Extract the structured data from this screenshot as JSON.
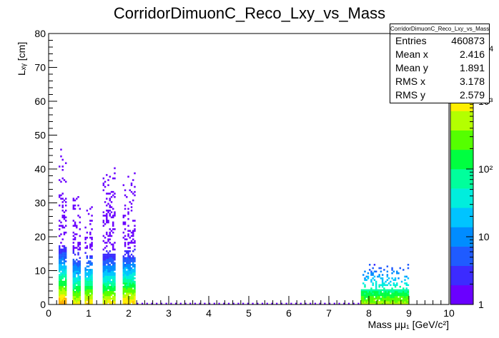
{
  "chart_data": {
    "type": "heatmap",
    "title": "CorridorDimuonC_Reco_Lxy_vs_Mass",
    "xlabel": "Mass μμ₁ [GeV/c²]",
    "ylabel": "Lₓᵧ [cm]",
    "xlim": [
      0,
      10
    ],
    "ylim": [
      0,
      80
    ],
    "x_ticks": [
      "0",
      "1",
      "2",
      "3",
      "4",
      "5",
      "6",
      "7",
      "8",
      "9",
      "10"
    ],
    "y_ticks": [
      "0",
      "10",
      "20",
      "30",
      "40",
      "50",
      "60",
      "70",
      "80"
    ],
    "z_scale": "log",
    "zlim": [
      1,
      10000
    ],
    "z_ticks": [
      "1",
      "10",
      "10²",
      "10³"
    ],
    "z_exponent_label": "4",
    "palette": [
      "#6a00ff",
      "#3c2bff",
      "#1f5bff",
      "#008cff",
      "#00c4ff",
      "#00eedd",
      "#00ff9c",
      "#00ff40",
      "#55ff00",
      "#b4ff00",
      "#ffee00",
      "#ffb000",
      "#ff6000",
      "#ff1a00"
    ],
    "stats_box": {
      "name": "CorridorDimuonC_Reco_Lxy_vs_Mass",
      "rows": [
        {
          "label": "Entries",
          "value": "460873"
        },
        {
          "label": "Mean x",
          "value": "2.416"
        },
        {
          "label": "Mean y",
          "value": "1.891"
        },
        {
          "label": "RMS x",
          "value": "3.178"
        },
        {
          "label": "RMS y",
          "value": "2.579"
        }
      ]
    },
    "clusters": [
      {
        "xmin": 0.25,
        "xmax": 0.45,
        "ymax": 47,
        "peak": 3000
      },
      {
        "xmin": 0.6,
        "xmax": 0.8,
        "ymax": 36,
        "peak": 1200
      },
      {
        "xmin": 0.9,
        "xmax": 1.1,
        "ymax": 30,
        "peak": 1500
      },
      {
        "xmin": 1.35,
        "xmax": 1.65,
        "ymax": 42,
        "peak": 1300
      },
      {
        "xmin": 1.85,
        "xmax": 2.15,
        "ymax": 40,
        "peak": 1800
      },
      {
        "xmin": 7.8,
        "xmax": 9.0,
        "ymax": 12,
        "peak": 600
      }
    ]
  }
}
